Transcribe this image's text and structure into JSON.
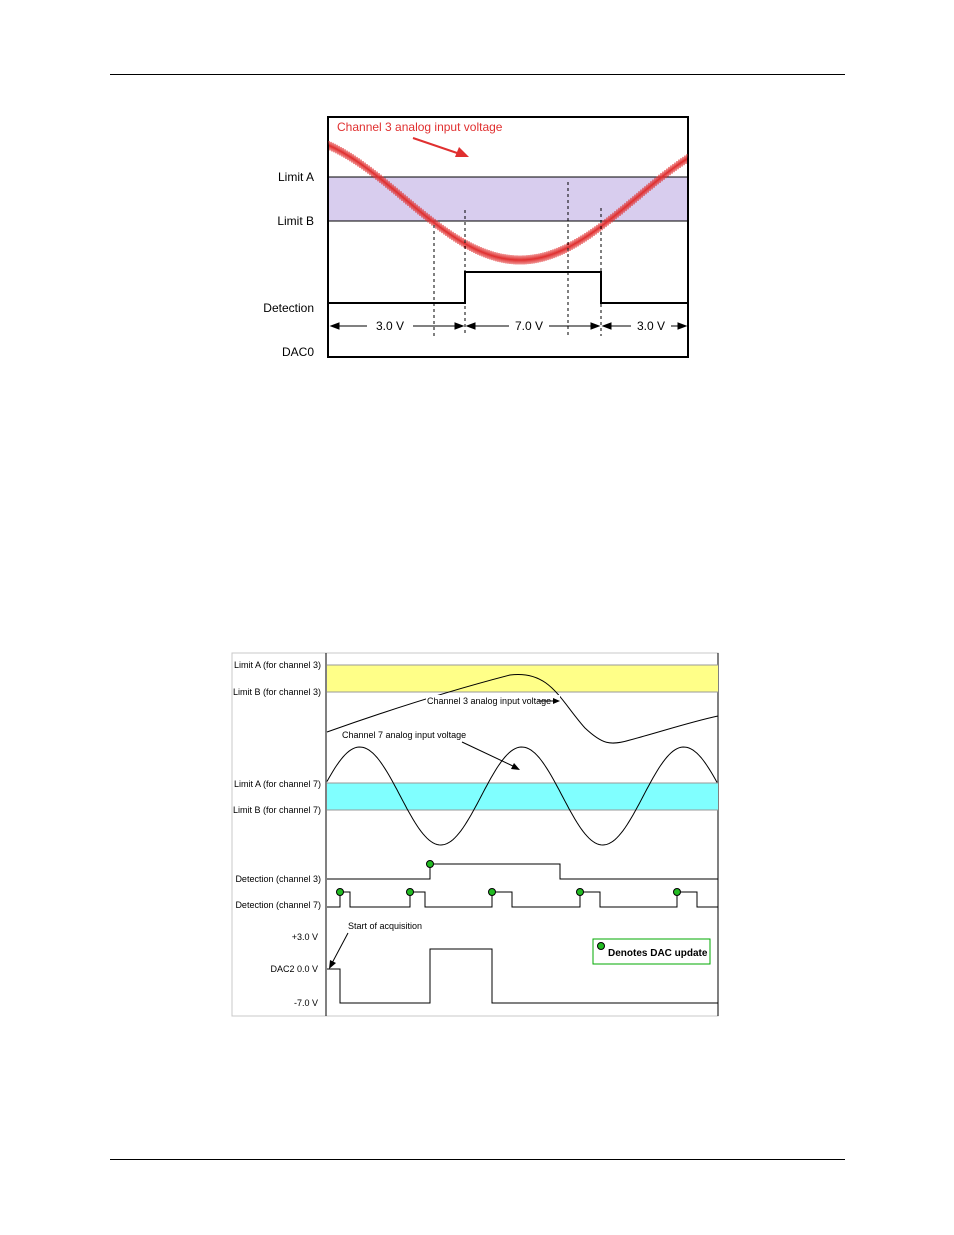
{
  "colors": {
    "signal_red": "#e03030",
    "band_purple": "#d8cdee",
    "band_yellow": "#ffff88",
    "band_cyan": "#80ffff",
    "marker_green": "#22bb22"
  },
  "figure1": {
    "signal_label": "Channel 3 analog input voltage",
    "row_labels": {
      "limit_a": "Limit A",
      "limit_b": "Limit B",
      "detection": "Detection",
      "dac": "DAC0"
    },
    "segment_labels": [
      "3.0 V",
      "7.0 V",
      "3.0 V"
    ]
  },
  "figure2": {
    "row_labels": {
      "limit_a_ch3": "Limit A (for channel 3)",
      "limit_b_ch3": "Limit B (for channel 3)",
      "limit_a_ch7": "Limit A (for channel 7)",
      "limit_b_ch7": "Limit B (for channel 7)",
      "detection_ch3": "Detection (channel 3)",
      "detection_ch7": "Detection (channel 7)",
      "dac_high": "+3.0 V",
      "dac_mid": "DAC2 0.0 V",
      "dac_low": "-7.0 V"
    },
    "ch3_label": "Channel 3 analog input voltage",
    "ch7_label": "Channel 7 analog input voltage",
    "start_label": "Start of acquisition",
    "legend_label": "Denotes DAC update"
  }
}
